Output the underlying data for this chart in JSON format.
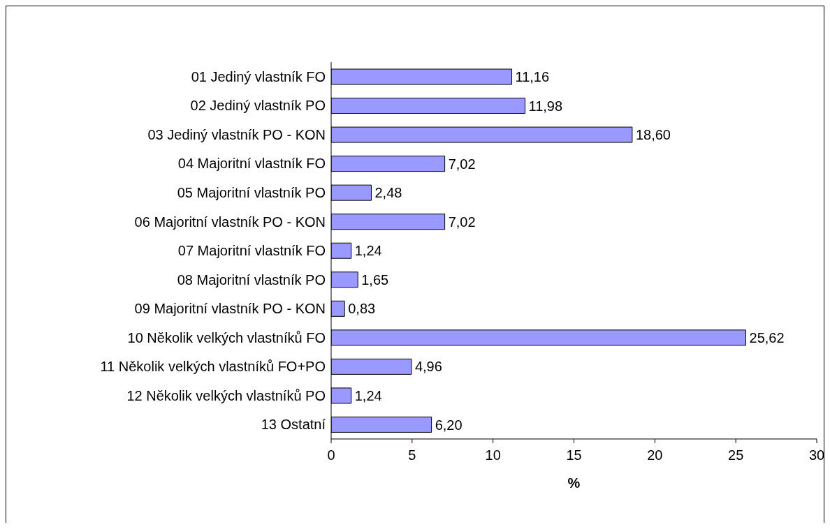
{
  "chart_data": {
    "type": "bar",
    "orientation": "horizontal",
    "xlabel": "%",
    "categories": [
      "01 Jediný vlastník FO",
      "02 Jediný vlastník PO",
      "03 Jediný vlastník PO - KON",
      "04 Majoritní vlastník FO",
      "05 Majoritní vlastník PO",
      "06 Majoritní vlastník PO - KON",
      "07 Majoritní vlastník FO",
      "08 Majoritní vlastník PO",
      "09 Majoritní vlastník PO - KON",
      "10 Několik velkých vlastníků FO",
      "11 Několik velkých vlastníků FO+PO",
      "12 Několik velkých vlastníků PO",
      "13 Ostatní"
    ],
    "values": [
      11.16,
      11.98,
      18.6,
      7.02,
      2.48,
      7.02,
      1.24,
      1.65,
      0.83,
      25.62,
      4.96,
      1.24,
      6.2
    ],
    "value_labels": [
      "11,16",
      "11,98",
      "18,60",
      "7,02",
      "2,48",
      "7,02",
      "1,24",
      "1,65",
      "0,83",
      "25,62",
      "4,96",
      "1,24",
      "6,20"
    ],
    "color": "#9999ff",
    "xlim": [
      0,
      30
    ],
    "xticks": [
      0,
      5,
      10,
      15,
      20,
      25,
      30
    ],
    "grid": false,
    "legend": false
  }
}
